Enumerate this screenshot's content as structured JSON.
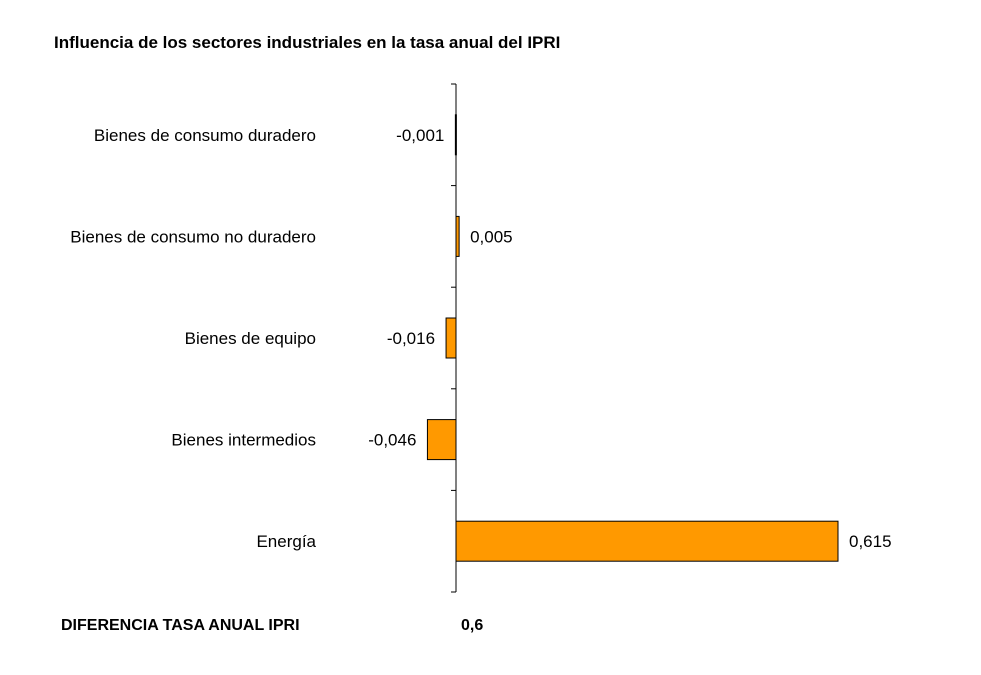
{
  "chart_data": {
    "type": "bar",
    "orientation": "horizontal",
    "title": "Influencia de los sectores industriales en la tasa anual del IPRI",
    "categories": [
      "Bienes de consumo duradero",
      "Bienes de consumo no duradero",
      "Bienes de equipo",
      "Bienes intermedios",
      "Energía"
    ],
    "values": [
      -0.001,
      0.005,
      -0.016,
      -0.046,
      0.615
    ],
    "value_labels": [
      "-0,001",
      "0,005",
      "-0,016",
      "-0,046",
      "0,615"
    ],
    "xlim": [
      -0.3,
      0.7
    ],
    "grid": false,
    "legend": "none",
    "bar_color": "#FF9900",
    "bar_edge_color": "#000000"
  },
  "footer": {
    "label": "DIFERENCIA TASA ANUAL IPRI",
    "value": "0,6"
  }
}
